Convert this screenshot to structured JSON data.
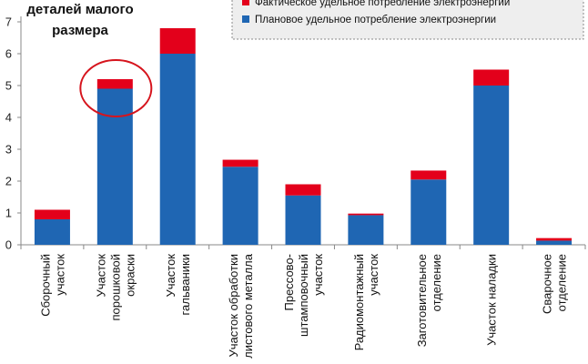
{
  "chart_data": {
    "type": "bar",
    "stacked": true,
    "categories": [
      [
        "Сборочный",
        "участок"
      ],
      [
        "Участок",
        "порошковой",
        "окраски"
      ],
      [
        "Участок",
        "гальваники"
      ],
      [
        "Участок обработки",
        "листового металла"
      ],
      [
        "Прессово-",
        "штамповочный",
        "участок"
      ],
      [
        "Радиомонтажный",
        "участок"
      ],
      [
        "Заготовительное",
        "отделение"
      ],
      [
        "Участок наладки"
      ],
      [
        "Сварочное",
        "отделение"
      ]
    ],
    "series": [
      {
        "name": "Плановое удельное потребление электроэнергии",
        "color": "#1f66b3",
        "values": [
          0.8,
          4.9,
          6.0,
          2.45,
          1.55,
          0.93,
          2.05,
          5.0,
          0.13
        ]
      },
      {
        "name": "Фактическое удельное потребление электроэнергии",
        "color": "#e3001b",
        "values": [
          0.3,
          0.3,
          0.8,
          0.22,
          0.35,
          0.05,
          0.28,
          0.5,
          0.08
        ]
      }
    ],
    "ylim": [
      0,
      7
    ],
    "yticks": [
      0,
      1,
      2,
      3,
      4,
      5,
      6,
      7
    ],
    "annotation": [
      "деталей малого",
      "размера"
    ],
    "highlight_category_index": 1,
    "highlight_color": "#d6141d",
    "legend_position": "top-right"
  }
}
